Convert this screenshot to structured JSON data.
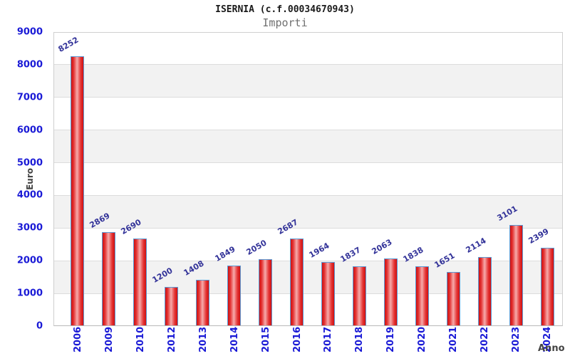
{
  "chart_data": {
    "type": "bar",
    "title": "ISERNIA (c.f.00034670943)",
    "subtitle": "Importi",
    "xlabel": "Anno",
    "ylabel": "Euro",
    "categories": [
      "2006",
      "2009",
      "2010",
      "2012",
      "2013",
      "2014",
      "2015",
      "2016",
      "2017",
      "2018",
      "2019",
      "2020",
      "2021",
      "2022",
      "2023",
      "2024"
    ],
    "values": [
      8252,
      2869,
      2690,
      1200,
      1408,
      1849,
      2050,
      2687,
      1964,
      1837,
      2063,
      1838,
      1651,
      2114,
      3101,
      2399
    ],
    "ylim": [
      0,
      9000
    ],
    "ytick_step": 1000,
    "grid": "horizontal-bands-alternating",
    "legend": "none",
    "colors": {
      "axis_tick_label": "#1a1ad6",
      "value_label": "#333399",
      "bar_border": "#5b9bd5",
      "bar_gradient": [
        "#cf1010",
        "#e43434",
        "#f6abab",
        "#e43434",
        "#cf1010"
      ],
      "band_fill": "#f2f2f2",
      "gridline": "#dcdcdc",
      "axis_title": "#444444",
      "title": "#1a1a1a",
      "subtitle": "#707070"
    }
  }
}
